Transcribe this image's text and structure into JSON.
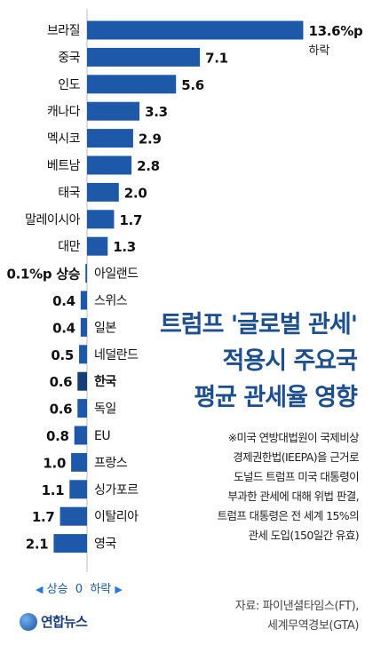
{
  "chart_data": {
    "type": "bar",
    "orientation": "horizontal",
    "title": [
      "트럼프 '글로벌 관세'",
      "적용시 주요국",
      "평균 관세율 영향"
    ],
    "unit": "%p",
    "categories": [
      "브라질",
      "중국",
      "인도",
      "캐나다",
      "멕시코",
      "베트남",
      "태국",
      "말레이시아",
      "대만",
      "아일랜드",
      "스위스",
      "일본",
      "네덜란드",
      "한국",
      "독일",
      "EU",
      "프랑스",
      "싱가포르",
      "이탈리아",
      "영국"
    ],
    "values": [
      -13.6,
      -7.1,
      -5.6,
      -3.3,
      -2.9,
      -2.8,
      -2.0,
      -1.7,
      -1.3,
      0.1,
      0.4,
      0.4,
      0.5,
      0.6,
      0.6,
      0.8,
      1.0,
      1.1,
      1.7,
      2.1
    ],
    "value_labels": [
      "13.6%p",
      "7.1",
      "5.6",
      "3.3",
      "2.9",
      "2.8",
      "2.0",
      "1.7",
      "1.3",
      "0.1%p 상승",
      "0.4",
      "0.4",
      "0.5",
      "0.6",
      "0.6",
      "0.8",
      "1.0",
      "1.1",
      "1.7",
      "2.1"
    ],
    "first_value_suffix": "하락",
    "highlight": "한국",
    "legend": {
      "left": "상승",
      "zero": "0",
      "right": "하락"
    }
  },
  "note": [
    "※미국 연방대법원이 국제비상",
    "경제권한법(IEEPA)을 근거로",
    "도널드 트럼프 미국 대통령이",
    "부과한 관세에 대해 위법 판결,",
    "트럼프 대통령은 전 세계 15%의",
    "관세 도입(150일간 유효)"
  ],
  "source": [
    "자료: 파이낸셜타임스(FT),",
    "세계무역경보(GTA)"
  ],
  "logo_text": "연합뉴스",
  "colors": {
    "bar": "#1e58a8",
    "highlight": "#163e78",
    "title": "#1d4f8f"
  }
}
